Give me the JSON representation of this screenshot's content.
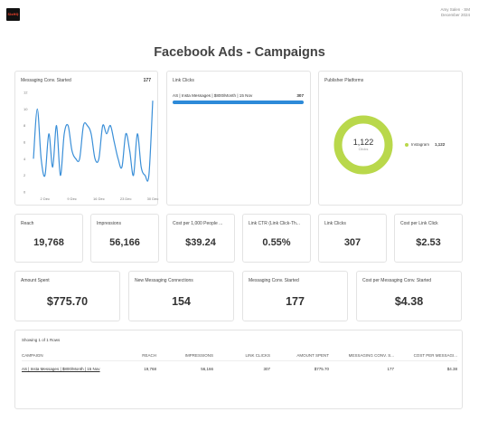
{
  "header": {
    "logo_text": "SixHQ",
    "user_name": "Amy Salen · SM",
    "period": "December 2024"
  },
  "page_title": "Facebook Ads - Campaigns",
  "messaging_chart": {
    "label": "Messaging Conv. Started",
    "total": "177"
  },
  "link_clicks_card": {
    "label": "Link Clicks",
    "row_label": "AS | Insta Messages | $800/Month | 15 Nov",
    "row_value": "307",
    "fill_fraction": 1.0,
    "bar_color": "#2d8ad8"
  },
  "publisher_card": {
    "label": "Publisher Platforms",
    "center_value": "1,122",
    "center_sub": "Clicks",
    "legend_name": "Instagram",
    "legend_value": "1,122",
    "ring_color": "#b9d84b"
  },
  "kpis_row1": [
    {
      "label": "Reach",
      "value": "19,768"
    },
    {
      "label": "Impressions",
      "value": "56,166"
    },
    {
      "label": "Cost per 1,000 People ...",
      "value": "$39.24"
    },
    {
      "label": "Link CTR (Link Click-Th...",
      "value": "0.55%"
    },
    {
      "label": "Link Clicks",
      "value": "307"
    },
    {
      "label": "Cost per Link Click",
      "value": "$2.53"
    }
  ],
  "kpis_row2": [
    {
      "label": "Amount Spent",
      "value": "$775.70"
    },
    {
      "label": "New Messaging Connections",
      "value": "154"
    },
    {
      "label": "Messaging Conv. Started",
      "value": "177"
    },
    {
      "label": "Cost per Messaging Conv. Started",
      "value": "$4.38"
    }
  ],
  "table": {
    "caption": "Showing 1 of 1 Rows",
    "headers": [
      "Campaign",
      "Reach",
      "Impressions",
      "Link Clicks",
      "Amount Spent",
      "Messaging Conv. S...",
      "Cost per Messagi..."
    ],
    "rows": [
      [
        "AS | Insta Messages | $800/Month | 15 Nov",
        "19,768",
        "56,166",
        "307",
        "$775.70",
        "177",
        "$4.38"
      ]
    ]
  },
  "chart_data": {
    "type": "line",
    "title": "Messaging Conv. Started",
    "x": [
      "Nov 29",
      "Nov 30",
      "Dec 1",
      "Dec 2",
      "Dec 3",
      "Dec 4",
      "Dec 5",
      "Dec 6",
      "Dec 7",
      "Dec 8",
      "Dec 9",
      "Dec 10",
      "Dec 11",
      "Dec 12",
      "Dec 13",
      "Dec 14",
      "Dec 15",
      "Dec 16",
      "Dec 17",
      "Dec 18",
      "Dec 19",
      "Dec 20",
      "Dec 21",
      "Dec 22",
      "Dec 23",
      "Dec 24",
      "Dec 25",
      "Dec 26",
      "Dec 27",
      "Dec 28",
      "Dec 29",
      "Dec 30"
    ],
    "values": [
      4,
      10,
      4,
      2,
      7,
      3,
      8,
      2,
      7,
      8,
      5,
      4,
      4,
      8,
      8,
      7,
      4,
      4,
      8,
      7,
      8,
      6,
      4,
      3,
      7,
      5,
      2,
      7,
      3,
      2,
      2,
      11
    ],
    "x_tick_labels": [
      "2 Dec",
      "9 Dec",
      "16 Dec",
      "23 Dec",
      "30 Dec"
    ],
    "y_ticks": [
      0,
      2,
      4,
      6,
      8,
      10,
      12
    ],
    "ylim": [
      0,
      12
    ],
    "line_color": "#3a8fd8"
  }
}
